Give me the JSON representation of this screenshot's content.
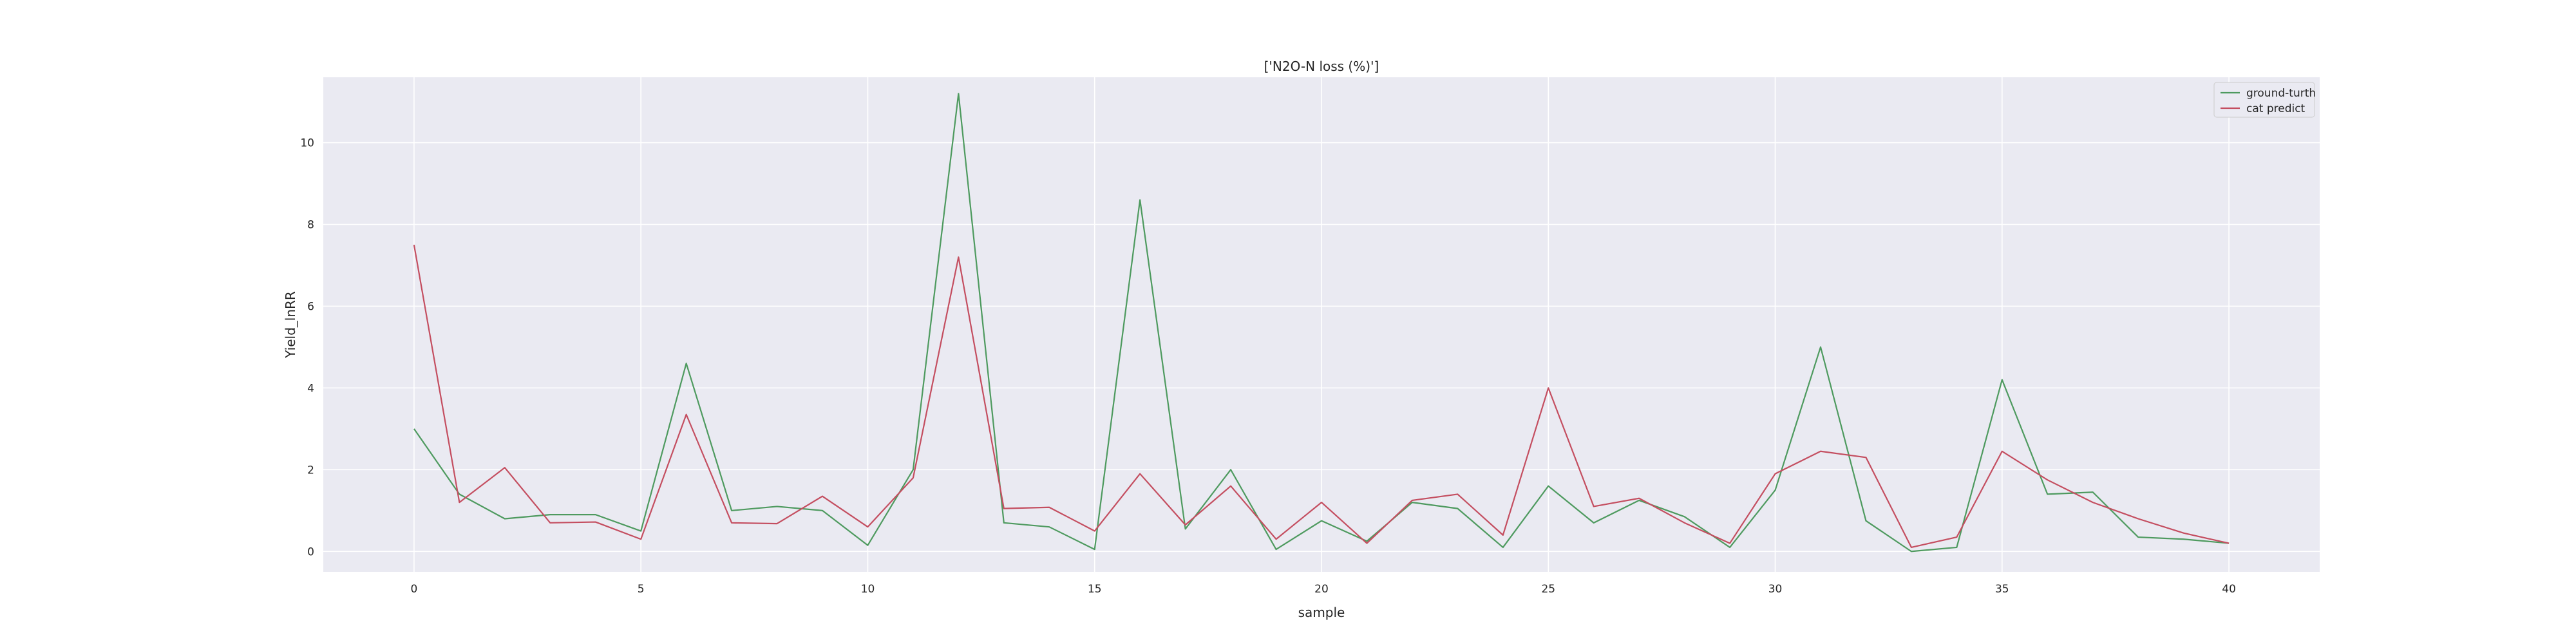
{
  "chart_data": {
    "type": "line",
    "title": "['N2O-N loss (%)']",
    "xlabel": "sample",
    "ylabel": "Yield_lnRR",
    "xlim": [
      -2,
      42
    ],
    "ylim": [
      -0.5,
      11.6
    ],
    "xticks": [
      0,
      5,
      10,
      15,
      20,
      25,
      30,
      35,
      40
    ],
    "yticks": [
      0,
      2,
      4,
      6,
      8,
      10
    ],
    "grid": true,
    "legend_position": "top-right",
    "x": [
      0,
      1,
      2,
      3,
      4,
      5,
      6,
      7,
      8,
      9,
      10,
      11,
      12,
      13,
      14,
      15,
      16,
      17,
      18,
      19,
      20,
      21,
      22,
      23,
      24,
      25,
      26,
      27,
      28,
      29,
      30,
      31,
      32,
      33,
      34,
      35,
      36,
      37,
      38,
      39,
      40
    ],
    "series": [
      {
        "name": "ground-turth",
        "color": "#4e9a5f",
        "values": [
          3.0,
          1.4,
          0.8,
          0.9,
          0.9,
          0.5,
          4.6,
          1.0,
          1.1,
          1.0,
          0.15,
          2.0,
          11.2,
          0.7,
          0.6,
          0.05,
          8.6,
          0.55,
          2.0,
          0.05,
          0.75,
          0.25,
          1.2,
          1.05,
          0.1,
          1.6,
          0.7,
          1.25,
          0.85,
          0.1,
          1.5,
          5.0,
          0.75,
          0.0,
          0.1,
          4.2,
          1.4,
          1.45,
          0.35,
          0.3,
          0.2
        ]
      },
      {
        "name": "cat predict",
        "color": "#c44e60",
        "values": [
          7.5,
          1.2,
          2.05,
          0.7,
          0.72,
          0.3,
          3.35,
          0.7,
          0.68,
          1.35,
          0.6,
          1.8,
          7.2,
          1.05,
          1.08,
          0.5,
          1.9,
          0.65,
          1.6,
          0.3,
          1.2,
          0.2,
          1.25,
          1.4,
          0.4,
          4.0,
          1.1,
          1.3,
          0.7,
          0.2,
          1.9,
          2.45,
          2.3,
          0.1,
          0.35,
          2.45,
          1.75,
          1.2,
          0.8,
          0.45,
          0.2
        ]
      }
    ]
  }
}
